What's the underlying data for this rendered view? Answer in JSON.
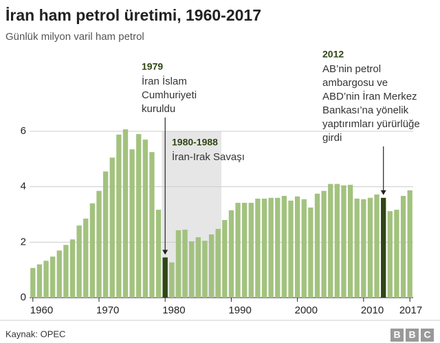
{
  "chart_data": {
    "type": "bar",
    "title": "İran ham petrol üretimi, 1960-2017",
    "subtitle": "Günlük milyon varil ham petrol",
    "source": "Kaynak: OPEC",
    "x": [
      1960,
      1961,
      1962,
      1963,
      1964,
      1965,
      1966,
      1967,
      1968,
      1969,
      1970,
      1971,
      1972,
      1973,
      1974,
      1975,
      1976,
      1977,
      1978,
      1979,
      1980,
      1981,
      1982,
      1983,
      1984,
      1985,
      1986,
      1987,
      1988,
      1989,
      1990,
      1991,
      1992,
      1993,
      1994,
      1995,
      1996,
      1997,
      1998,
      1999,
      2000,
      2001,
      2002,
      2003,
      2004,
      2005,
      2006,
      2007,
      2008,
      2009,
      2010,
      2011,
      2012,
      2013,
      2014,
      2015,
      2016,
      2017
    ],
    "values": [
      1.07,
      1.2,
      1.33,
      1.48,
      1.7,
      1.9,
      2.1,
      2.6,
      2.85,
      3.4,
      3.85,
      4.55,
      5.05,
      5.88,
      6.07,
      5.35,
      5.9,
      5.7,
      5.25,
      3.17,
      1.45,
      1.27,
      2.43,
      2.45,
      2.03,
      2.18,
      2.05,
      2.28,
      2.48,
      2.8,
      3.15,
      3.42,
      3.42,
      3.42,
      3.57,
      3.57,
      3.6,
      3.6,
      3.67,
      3.5,
      3.65,
      3.55,
      3.25,
      3.75,
      3.85,
      4.1,
      4.1,
      4.05,
      4.07,
      3.57,
      3.55,
      3.6,
      3.72,
      3.6,
      3.12,
      3.17,
      3.67,
      3.87
    ],
    "color": "#a2c27e",
    "highlight_color": "#2f4614",
    "highlight_x": [
      1980,
      2013
    ],
    "xlim": [
      1959.5,
      2017.5
    ],
    "xticks": [
      1960,
      1970,
      1980,
      1990,
      2000,
      2010,
      2017
    ],
    "ylim": [
      0,
      6.5
    ],
    "yticks": [
      0,
      2,
      4,
      6
    ],
    "grid": true,
    "shaded_range": {
      "x": [
        1979.5,
        1988.5
      ],
      "color": "#e6e6e6"
    },
    "annotations": [
      {
        "heading": "1979",
        "lines": [
          "İran İslam",
          "Cumhuriyeti",
          "kuruldu"
        ],
        "x": 1980
      },
      {
        "heading": "1980-1988",
        "lines": [
          "İran-Irak Savaşı"
        ]
      },
      {
        "heading": "2012",
        "lines": [
          "AB’nin petrol",
          "ambargosu ve",
          "ABD’nin İran Merkez",
          "Bankası’na yönelik",
          "yaptırımları yürürlüğe",
          "girdi"
        ],
        "x": 2013
      }
    ]
  }
}
